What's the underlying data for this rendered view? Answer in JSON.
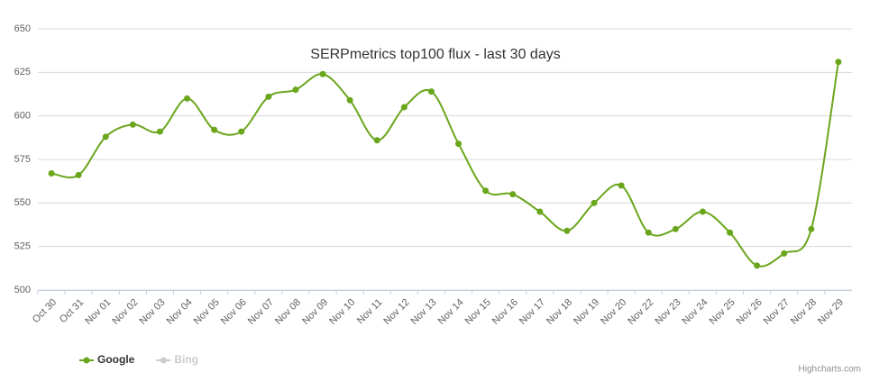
{
  "chart_data": {
    "type": "line",
    "title": "SERPmetrics top100 flux - last 30 days",
    "categories": [
      "Oct 30",
      "Oct 31",
      "Nov 01",
      "Nov 02",
      "Nov 03",
      "Nov 04",
      "Nov 05",
      "Nov 06",
      "Nov 07",
      "Nov 08",
      "Nov 09",
      "Nov 10",
      "Nov 11",
      "Nov 12",
      "Nov 13",
      "Nov 14",
      "Nov 15",
      "Nov 16",
      "Nov 17",
      "Nov 18",
      "Nov 19",
      "Nov 20",
      "Nov 22",
      "Nov 23",
      "Nov 24",
      "Nov 25",
      "Nov 26",
      "Nov 27",
      "Nov 28",
      "Nov 29"
    ],
    "series": [
      {
        "name": "Google",
        "color": "#6aa61c",
        "values": [
          567,
          566,
          588,
          595,
          591,
          610,
          592,
          591,
          611,
          615,
          624,
          609,
          586,
          605,
          614,
          584,
          557,
          555,
          545,
          534,
          550,
          560,
          533,
          535,
          545,
          533,
          514,
          521,
          535,
          631
        ]
      },
      {
        "name": "Bing",
        "color": "#cccccc",
        "visible": false
      }
    ],
    "ylim": [
      500,
      650
    ],
    "yticks": [
      500,
      525,
      550,
      575,
      600,
      625,
      650
    ],
    "grid": true,
    "legend": "bottom-left",
    "credits": "Highcharts.com"
  }
}
